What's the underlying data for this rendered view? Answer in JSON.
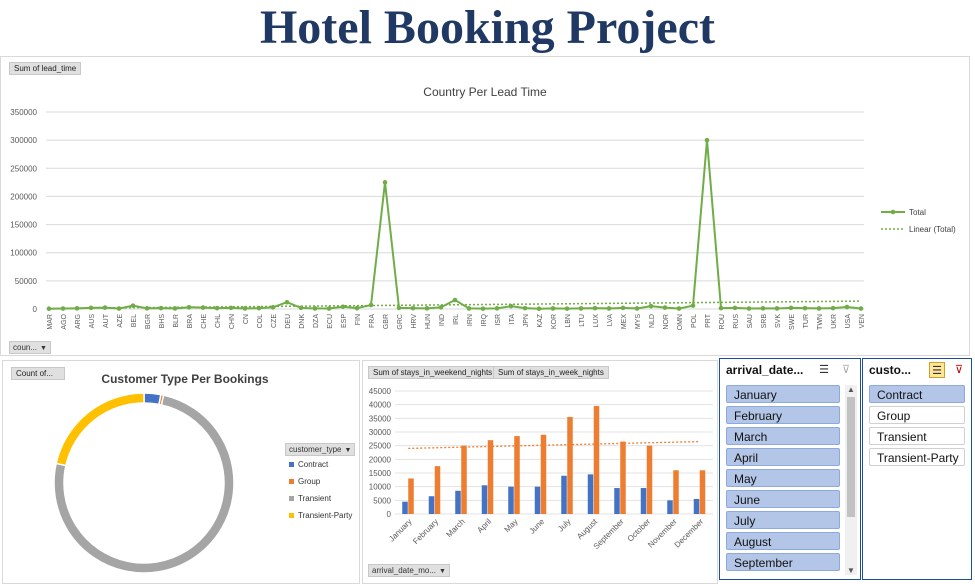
{
  "page": {
    "title": "Hotel Booking Project"
  },
  "colors": {
    "title": "#1f3864",
    "line": "#70ad47",
    "blue": "#4472c4",
    "orange": "#ed7d31",
    "gray": "#a5a5a5",
    "gold": "#ffc000",
    "slicer_sel": "#b4c6e7"
  },
  "top_chart": {
    "field_button": "Sum of lead_time",
    "filter_button": "coun...",
    "legend": {
      "total": "Total",
      "trend": "Linear (Total)"
    }
  },
  "bottom_left": {
    "field_button": "Count of...",
    "legend_title": "customer_type"
  },
  "bottom_mid": {
    "field_buttons": [
      "Sum of stays_in_weekend_nights",
      "Sum of stays_in_week_nights"
    ],
    "filter_button": "arrival_date_mo..."
  },
  "slicer_month": {
    "title": "arrival_date...",
    "items": [
      "January",
      "February",
      "March",
      "April",
      "May",
      "June",
      "July",
      "August",
      "September"
    ]
  },
  "slicer_customer": {
    "title": "custo...",
    "items": [
      {
        "label": "Contract",
        "selected": true
      },
      {
        "label": "Group",
        "selected": false
      },
      {
        "label": "Transient",
        "selected": false
      },
      {
        "label": "Transient-Party",
        "selected": false
      }
    ]
  },
  "chart_data": [
    {
      "type": "line",
      "title": "Country Per Lead Time",
      "xlabel": "",
      "ylabel": "",
      "ylim": [
        0,
        350000
      ],
      "yticks": [
        0,
        50000,
        100000,
        150000,
        200000,
        250000,
        300000,
        350000
      ],
      "grid": true,
      "legend_position": "right",
      "trendline": {
        "type": "linear",
        "name": "Linear (Total)",
        "start": 1000,
        "end": 14000
      },
      "categories": [
        "MAR",
        "AGO",
        "ARG",
        "AUS",
        "AUT",
        "AZE",
        "BEL",
        "BGR",
        "BHS",
        "BLR",
        "BRA",
        "CHE",
        "CHL",
        "CHN",
        "CN",
        "COL",
        "CZE",
        "DEU",
        "DNK",
        "DZA",
        "ECU",
        "ESP",
        "FIN",
        "FRA",
        "GBR",
        "GRC",
        "HRV",
        "HUN",
        "IND",
        "IRL",
        "IRN",
        "IRQ",
        "ISR",
        "ITA",
        "JPN",
        "KAZ",
        "KOR",
        "LBN",
        "LTU",
        "LUX",
        "LVA",
        "MEX",
        "MYS",
        "NLD",
        "NOR",
        "OMN",
        "POL",
        "PRT",
        "ROU",
        "RUS",
        "SAU",
        "SRB",
        "SVK",
        "SWE",
        "TUR",
        "TWN",
        "UKR",
        "USA",
        "VEN"
      ],
      "series": [
        {
          "name": "Total",
          "values": [
            500,
            800,
            1200,
            2000,
            2500,
            800,
            6000,
            1200,
            1500,
            1000,
            3000,
            2500,
            1500,
            2000,
            1000,
            1500,
            3000,
            12000,
            2000,
            1000,
            800,
            4000,
            1500,
            7000,
            225000,
            2000,
            1500,
            1200,
            3000,
            16000,
            1000,
            600,
            1200,
            5000,
            1500,
            500,
            1000,
            600,
            1000,
            1500,
            1000,
            2000,
            1000,
            5000,
            2500,
            800,
            6000,
            300000,
            1500,
            2000,
            800,
            1200,
            1000,
            2000,
            1500,
            1000,
            1500,
            3500,
            800
          ]
        }
      ]
    },
    {
      "type": "pie",
      "title": "Customer Type Per Bookings",
      "legend_position": "right",
      "categories": [
        "Contract",
        "Group",
        "Transient",
        "Transient-Party"
      ],
      "values": [
        3,
        0.5,
        75,
        21.5
      ]
    },
    {
      "type": "bar",
      "title": "",
      "ylim": [
        0,
        45000
      ],
      "yticks": [
        0,
        5000,
        10000,
        15000,
        20000,
        25000,
        30000,
        35000,
        40000,
        45000
      ],
      "categories": [
        "January",
        "February",
        "March",
        "April",
        "May",
        "June",
        "July",
        "August",
        "September",
        "October",
        "November",
        "December"
      ],
      "series": [
        {
          "name": "Sum of stays_in_weekend_nights",
          "values": [
            4500,
            6500,
            8500,
            10500,
            10000,
            10000,
            14000,
            14500,
            9500,
            9500,
            5000,
            5500
          ]
        },
        {
          "name": "Sum of stays_in_week_nights",
          "values": [
            13000,
            17500,
            25000,
            27000,
            28500,
            29000,
            35500,
            39500,
            26500,
            25000,
            16000,
            16000
          ]
        }
      ],
      "trendline": {
        "type": "linear",
        "start": 24000,
        "end": 26500
      }
    }
  ]
}
